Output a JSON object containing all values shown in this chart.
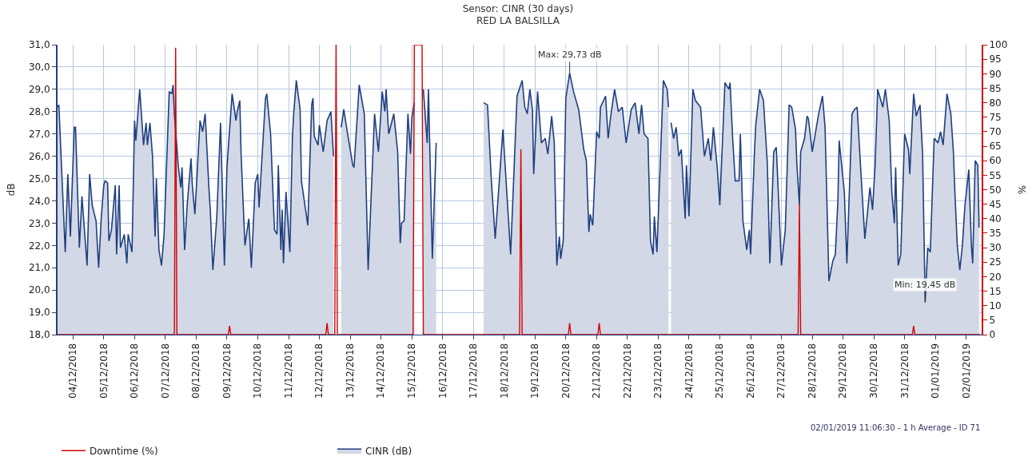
{
  "chart_data": {
    "type": "area",
    "title": "Sensor: CINR (30 days)",
    "subtitle": "RED LA BALSILLA",
    "ylabel": "dB",
    "y2label": "%",
    "xlim": [
      "2018-12-03T12:00",
      "2019-01-02T12:00"
    ],
    "xticks": [
      {
        "value": "2018-12-04",
        "label": "04/12/2018"
      },
      {
        "value": "2018-12-05",
        "label": "05/12/2018"
      },
      {
        "value": "2018-12-06",
        "label": "06/12/2018"
      },
      {
        "value": "2018-12-07",
        "label": "07/12/2018"
      },
      {
        "value": "2018-12-08",
        "label": "08/12/2018"
      },
      {
        "value": "2018-12-09",
        "label": "09/12/2018"
      },
      {
        "value": "2018-12-10",
        "label": "10/12/2018"
      },
      {
        "value": "2018-12-11",
        "label": "11/12/2018"
      },
      {
        "value": "2018-12-12",
        "label": "12/12/2018"
      },
      {
        "value": "2018-12-13",
        "label": "13/12/2018"
      },
      {
        "value": "2018-12-14",
        "label": "14/12/2018"
      },
      {
        "value": "2018-12-15",
        "label": "15/12/2018"
      },
      {
        "value": "2018-12-16",
        "label": "16/12/2018"
      },
      {
        "value": "2018-12-17",
        "label": "17/12/2018"
      },
      {
        "value": "2018-12-18",
        "label": "18/12/2018"
      },
      {
        "value": "2018-12-19",
        "label": "19/12/2018"
      },
      {
        "value": "2018-12-20",
        "label": "20/12/2018"
      },
      {
        "value": "2018-12-21",
        "label": "21/12/2018"
      },
      {
        "value": "2018-12-22",
        "label": "22/12/2018"
      },
      {
        "value": "2018-12-23",
        "label": "23/12/2018"
      },
      {
        "value": "2018-12-24",
        "label": "24/12/2018"
      },
      {
        "value": "2018-12-25",
        "label": "25/12/2018"
      },
      {
        "value": "2018-12-26",
        "label": "26/12/2018"
      },
      {
        "value": "2018-12-27",
        "label": "27/12/2018"
      },
      {
        "value": "2018-12-28",
        "label": "28/12/2018"
      },
      {
        "value": "2018-12-29",
        "label": "29/12/2018"
      },
      {
        "value": "2018-12-30",
        "label": "30/12/2018"
      },
      {
        "value": "2018-12-31",
        "label": "31/12/2018"
      },
      {
        "value": "2019-01-01",
        "label": "01/01/2019"
      },
      {
        "value": "2019-01-02",
        "label": "02/01/2019"
      }
    ],
    "ylim": [
      18,
      31
    ],
    "yticks": [
      {
        "value": 18,
        "label": "18,0"
      },
      {
        "value": 19,
        "label": "19,0"
      },
      {
        "value": 20,
        "label": "20,0"
      },
      {
        "value": 21,
        "label": "21,0"
      },
      {
        "value": 22,
        "label": "22,0"
      },
      {
        "value": 23,
        "label": "23,0"
      },
      {
        "value": 24,
        "label": "24,0"
      },
      {
        "value": 25,
        "label": "25,0"
      },
      {
        "value": 26,
        "label": "26,0"
      },
      {
        "value": 27,
        "label": "27,0"
      },
      {
        "value": 28,
        "label": "28,0"
      },
      {
        "value": 29,
        "label": "29,0"
      },
      {
        "value": 30,
        "label": "30,0"
      },
      {
        "value": 31,
        "label": "31,0"
      }
    ],
    "y2lim": [
      0,
      100
    ],
    "y2ticks": [
      0,
      5,
      10,
      15,
      20,
      25,
      30,
      35,
      40,
      45,
      50,
      55,
      60,
      65,
      70,
      75,
      80,
      85,
      90,
      95,
      100
    ],
    "grid": true,
    "legend": "bottom left",
    "marker": "none",
    "line_style": "solid",
    "annotations": [
      {
        "text": "Max: 29,73 dB",
        "x": "2018-12-20T03:00",
        "y": 29.73
      },
      {
        "text": "Min: 19,45 dB",
        "x": "2018-12-31T16:00",
        "y": 19.45
      },
      "02/01/2019 11:06:30 - 1 h Average - ID 71"
    ],
    "series": [
      {
        "name": "Downtime (%)",
        "type": "line",
        "axis": "y2",
        "color": "#d40000",
        "x": [
          "2018-12-03T12:00",
          "2018-12-07T07:00",
          "2018-12-07T08:00",
          "2018-12-07T09:00",
          "2018-12-09T01:00",
          "2018-12-09T02:00",
          "2018-12-09T03:00",
          "2018-12-12T05:00",
          "2018-12-12T06:00",
          "2018-12-12T07:00",
          "2018-12-12T12:00",
          "2018-12-12T13:00",
          "2018-12-12T14:00",
          "2018-12-15T01:00",
          "2018-12-15T02:00",
          "2018-12-15T08:00",
          "2018-12-15T09:00",
          "2018-12-18T12:00",
          "2018-12-18T13:00",
          "2018-12-18T14:00",
          "2018-12-20T02:00",
          "2018-12-20T03:00",
          "2018-12-20T04:00",
          "2018-12-21T01:00",
          "2018-12-21T02:00",
          "2018-12-21T03:00",
          "2018-12-27T13:00",
          "2018-12-27T14:00",
          "2018-12-27T15:00",
          "2018-12-31T06:00",
          "2018-12-31T07:00",
          "2018-12-31T08:00",
          "2019-01-02T11:00"
        ],
        "values": [
          0,
          0,
          99,
          0,
          0,
          3,
          0,
          0,
          4,
          0,
          0,
          100,
          0,
          0,
          100,
          100,
          0,
          0,
          64,
          0,
          0,
          4,
          0,
          0,
          4,
          0,
          0,
          45,
          0,
          0,
          3,
          0,
          0
        ]
      },
      {
        "name": "CINR (dB)",
        "color": "#1f3f80",
        "x": [
          "2018-12-03T12:00",
          "2018-12-03T13:00",
          "2018-12-03T18:00",
          "2018-12-03T20:00",
          "2018-12-03T22:00",
          "2018-12-04T01:00",
          "2018-12-04T02:00",
          "2018-12-04T05:00",
          "2018-12-04T07:00",
          "2018-12-04T11:00",
          "2018-12-04T13:00",
          "2018-12-04T15:00",
          "2018-12-04T18:00",
          "2018-12-04T20:00",
          "2018-12-04T22:00",
          "2018-12-05T00:00",
          "2018-12-05T01:00",
          "2018-12-05T03:00",
          "2018-12-05T04:00",
          "2018-12-05T06:00",
          "2018-12-05T09:00",
          "2018-12-05T10:00",
          "2018-12-05T12:00",
          "2018-12-05T13:00",
          "2018-12-05T16:00",
          "2018-12-05T18:00",
          "2018-12-05T19:00",
          "2018-12-05T22:00",
          "2018-12-06T00:00",
          "2018-12-06T01:00",
          "2018-12-06T04:00",
          "2018-12-06T07:00",
          "2018-12-06T09:00",
          "2018-12-06T10:00",
          "2018-12-06T12:00",
          "2018-12-06T14:00",
          "2018-12-06T16:00",
          "2018-12-06T17:00",
          "2018-12-06T19:00",
          "2018-12-06T21:00",
          "2018-12-06T23:00",
          "2018-12-07T03:00",
          "2018-12-07T05:00",
          "2018-12-07T06:00",
          "2018-12-07T07:00",
          "2018-12-07T09:00",
          "2018-12-07T10:00",
          "2018-12-07T12:00",
          "2018-12-07T13:00",
          "2018-12-07T15:00",
          "2018-12-07T17:00",
          "2018-12-07T20:00",
          "2018-12-07T21:00",
          "2018-12-07T23:00",
          "2018-12-08T03:00",
          "2018-12-08T05:00",
          "2018-12-08T07:00",
          "2018-12-08T10:00",
          "2018-12-08T11:00",
          "2018-12-08T13:00",
          "2018-12-08T16:00",
          "2018-12-08T19:00",
          "2018-12-08T22:00",
          "2018-12-09T00:00",
          "2018-12-09T04:00",
          "2018-12-09T07:00",
          "2018-12-09T08:00",
          "2018-12-09T10:00",
          "2018-12-09T11:00",
          "2018-12-09T14:00",
          "2018-12-09T17:00",
          "2018-12-09T19:00",
          "2018-12-09T22:00",
          "2018-12-10T00:00",
          "2018-12-10T01:00",
          "2018-12-10T06:00",
          "2018-12-10T07:00",
          "2018-12-10T10:00",
          "2018-12-10T13:00",
          "2018-12-10T15:00",
          "2018-12-10T16:00",
          "2018-12-10T18:00",
          "2018-12-10T19:00",
          "2018-12-10T20:00",
          "2018-12-10T22:00",
          "2018-12-11T01:00",
          "2018-12-11T03:00",
          "2018-12-11T04:00",
          "2018-12-11T06:00",
          "2018-12-11T09:00",
          "2018-12-11T10:00",
          "2018-12-11T15:00",
          "2018-12-11T18:00",
          "2018-12-11T19:00",
          "2018-12-11T20:00",
          "2018-12-11T23:00",
          "2018-12-12T00:00",
          "2018-12-12T03:00",
          "2018-12-12T06:00",
          "2018-12-12T09:00",
          "2018-12-12T11:00",
          "2018-12-12T13:00",
          "2018-12-12T17:00",
          "2018-12-12T19:00",
          "2018-12-12T22:00",
          "2018-12-13T02:00",
          "2018-12-13T03:00",
          "2018-12-13T05:00",
          "2018-12-13T07:00",
          "2018-12-13T11:00",
          "2018-12-13T14:00",
          "2018-12-13T19:00",
          "2018-12-13T22:00",
          "2018-12-14T01:00",
          "2018-12-14T03:00",
          "2018-12-14T04:00",
          "2018-12-14T06:00",
          "2018-12-14T10:00",
          "2018-12-14T13:00",
          "2018-12-14T15:00",
          "2018-12-14T16:00",
          "2018-12-14T18:00",
          "2018-12-14T21:00",
          "2018-12-14T23:00",
          "2018-12-15T00:00",
          "2018-12-15T02:00",
          "2018-12-15T06:00",
          "2018-12-15T09:00",
          "2018-12-15T12:00",
          "2018-12-15T13:00",
          "2018-12-15T16:00",
          "2018-12-15T19:00",
          "2018-12-15T21:00",
          "2018-12-17T08:00",
          "2018-12-17T11:00",
          "2018-12-17T14:00",
          "2018-12-17T17:00",
          "2018-12-17T23:00",
          "2018-12-18T05:00",
          "2018-12-18T10:00",
          "2018-12-18T14:00",
          "2018-12-18T16:00",
          "2018-12-18T18:00",
          "2018-12-18T20:00",
          "2018-12-18T22:00",
          "2018-12-18T23:00",
          "2018-12-19T02:00",
          "2018-12-19T05:00",
          "2018-12-19T08:00",
          "2018-12-19T10:00",
          "2018-12-19T13:00",
          "2018-12-19T15:00",
          "2018-12-19T17:00",
          "2018-12-19T19:00",
          "2018-12-19T20:00",
          "2018-12-19T22:00",
          "2018-12-20T00:00",
          "2018-12-20T03:00",
          "2018-12-20T06:00",
          "2018-12-20T10:00",
          "2018-12-20T14:00",
          "2018-12-20T16:00",
          "2018-12-20T18:00",
          "2018-12-20T19:00",
          "2018-12-20T21:00",
          "2018-12-21T00:00",
          "2018-12-21T02:00",
          "2018-12-21T03:00",
          "2018-12-21T07:00",
          "2018-12-21T09:00",
          "2018-12-21T11:00",
          "2018-12-21T14:00",
          "2018-12-21T17:00",
          "2018-12-21T20:00",
          "2018-12-21T23:00",
          "2018-12-22T03:00",
          "2018-12-22T06:00",
          "2018-12-22T09:00",
          "2018-12-22T11:00",
          "2018-12-22T13:00",
          "2018-12-22T16:00",
          "2018-12-22T18:00",
          "2018-12-22T20:00",
          "2018-12-22T21:00",
          "2018-12-22T23:00",
          "2018-12-23T04:00",
          "2018-12-23T07:00",
          "2018-12-23T08:00",
          "2018-12-23T09:00",
          "2018-12-23T10:00",
          "2018-12-23T12:00",
          "2018-12-23T14:00",
          "2018-12-23T16:00",
          "2018-12-23T18:00",
          "2018-12-23T21:00",
          "2018-12-23T22:00",
          "2018-12-24T00:00",
          "2018-12-24T03:00",
          "2018-12-24T05:00",
          "2018-12-24T09:00",
          "2018-12-24T12:00",
          "2018-12-24T15:00",
          "2018-12-24T17:00",
          "2018-12-24T19:00",
          "2018-12-24T22:00",
          "2018-12-25T00:00",
          "2018-12-25T01:00",
          "2018-12-25T04:00",
          "2018-12-25T07:00",
          "2018-12-25T08:00",
          "2018-12-25T10:00",
          "2018-12-25T12:00",
          "2018-12-25T15:00",
          "2018-12-25T16:00",
          "2018-12-25T18:00",
          "2018-12-25T21:00",
          "2018-12-25T23:00",
          "2018-12-26T00:00",
          "2018-12-26T03:00",
          "2018-12-26T04:00",
          "2018-12-26T07:00",
          "2018-12-26T10:00",
          "2018-12-26T13:00",
          "2018-12-26T15:00",
          "2018-12-26T18:00",
          "2018-12-26T20:00",
          "2018-12-26T21:00",
          "2018-12-27T00:00",
          "2018-12-27T03:00",
          "2018-12-27T06:00",
          "2018-12-27T08:00",
          "2018-12-27T11:00",
          "2018-12-27T12:00",
          "2018-12-27T14:00",
          "2018-12-27T15:00",
          "2018-12-27T18:00",
          "2018-12-27T20:00",
          "2018-12-27T21:00",
          "2018-12-28T00:00",
          "2018-12-28T05:00",
          "2018-12-28T08:00",
          "2018-12-28T10:00",
          "2018-12-28T13:00",
          "2018-12-28T16:00",
          "2018-12-28T18:00",
          "2018-12-28T20:00",
          "2018-12-28T21:00",
          "2018-12-29T01:00",
          "2018-12-29T03:00",
          "2018-12-29T07:00",
          "2018-12-29T09:00",
          "2018-12-29T11:00",
          "2018-12-29T14:00",
          "2018-12-29T17:00",
          "2018-12-29T21:00",
          "2018-12-29T23:00",
          "2018-12-30T01:00",
          "2018-12-30T03:00",
          "2018-12-30T07:00",
          "2018-12-30T09:00",
          "2018-12-30T12:00",
          "2018-12-30T14:00",
          "2018-12-30T16:00",
          "2018-12-30T17:00",
          "2018-12-30T19:00",
          "2018-12-30T21:00",
          "2018-12-31T00:00",
          "2018-12-31T03:00",
          "2018-12-31T04:00",
          "2018-12-31T07:00",
          "2018-12-31T09:00",
          "2018-12-31T12:00",
          "2018-12-31T14:00",
          "2018-12-31T16:00",
          "2018-12-31T18:00",
          "2018-12-31T20:00",
          "2018-12-31T23:00",
          "2019-01-01T02:00",
          "2019-01-01T04:00",
          "2019-01-01T06:00",
          "2019-01-01T09:00",
          "2019-01-01T12:00",
          "2019-01-01T14:00",
          "2019-01-01T15:00",
          "2019-01-01T17:00",
          "2019-01-01T19:00",
          "2019-01-01T21:00",
          "2019-01-01T23:00",
          "2019-01-02T02:00",
          "2019-01-02T04:00",
          "2019-01-02T05:00",
          "2019-01-02T07:00",
          "2019-01-02T09:00",
          "2019-01-02T10:00"
        ],
        "values": [
          28.2,
          28.3,
          21.7,
          25.2,
          22.4,
          27.3,
          27.3,
          21.9,
          24.2,
          21.1,
          25.2,
          23.8,
          23.1,
          21.0,
          23.2,
          24.7,
          24.9,
          24.8,
          22.2,
          22.7,
          24.7,
          21.6,
          24.7,
          21.9,
          22.5,
          21.2,
          22.5,
          21.7,
          27.6,
          26.7,
          29.0,
          26.5,
          27.5,
          26.5,
          27.5,
          26.0,
          22.4,
          25.0,
          21.8,
          21.1,
          22.5,
          28.9,
          28.8,
          29.2,
          27.9,
          26.4,
          25.6,
          24.6,
          25.5,
          21.8,
          23.8,
          25.9,
          24.7,
          23.4,
          27.6,
          27.1,
          27.9,
          24.5,
          23.6,
          20.9,
          23.2,
          27.5,
          21.1,
          25.5,
          28.8,
          27.6,
          28.0,
          28.5,
          26.1,
          22.0,
          23.2,
          21.0,
          24.8,
          25.2,
          23.7,
          28.6,
          28.8,
          27.0,
          22.7,
          22.5,
          25.6,
          21.8,
          23.6,
          21.2,
          24.4,
          21.7,
          26.9,
          27.9,
          29.4,
          28.1,
          24.9,
          22.9,
          28.3,
          28.6,
          26.9,
          26.5,
          27.4,
          26.2,
          27.6,
          28.0,
          26.0,
          null,
          27.3,
          28.1,
          27.0,
          25.6,
          25.5,
          27.3,
          29.2,
          27.9,
          20.9,
          27.9,
          26.2,
          28.9,
          28.0,
          29.0,
          27.0,
          27.9,
          26.2,
          22.1,
          23.0,
          23.1,
          27.9,
          26.1,
          27.7,
          28.4,
          null,
          29.0,
          26.6,
          29.0,
          21.4,
          26.6,
          null,
          28.4,
          28.3,
          24.9,
          22.3,
          27.2,
          21.6,
          28.7,
          29.4,
          28.2,
          27.9,
          29.0,
          28.1,
          25.2,
          28.9,
          26.6,
          26.8,
          26.1,
          27.8,
          26.6,
          21.1,
          22.4,
          21.4,
          22.2,
          28.6,
          29.73,
          28.9,
          28.1,
          26.3,
          25.8,
          22.6,
          23.4,
          22.9,
          27.1,
          26.8,
          28.2,
          28.7,
          26.8,
          27.8,
          29.0,
          28.0,
          28.2,
          26.6,
          28.1,
          28.4,
          27.0,
          28.3,
          27.0,
          26.8,
          22.2,
          21.6,
          23.3,
          21.7,
          29.4,
          29.0,
          28.2,
          null,
          27.5,
          26.8,
          27.3,
          26.0,
          26.3,
          23.2,
          25.6,
          23.3,
          29.0,
          28.5,
          28.2,
          26.0,
          26.8,
          25.8,
          27.3,
          25.5,
          23.8,
          25.2,
          29.3,
          29.0,
          29.3,
          26.8,
          24.9,
          24.9,
          27.0,
          23.1,
          21.8,
          22.7,
          21.6,
          26.2,
          27.4,
          29.0,
          28.5,
          25.7,
          21.2,
          26.2,
          26.4,
          25.1,
          21.1,
          22.7,
          28.3,
          28.2,
          27.2,
          25.7,
          23.8,
          26.2,
          26.8,
          27.8,
          27.7,
          26.2,
          27.9,
          28.7,
          27.3,
          20.4,
          21.3,
          21.6,
          24.0,
          26.7,
          24.4,
          21.2,
          27.9,
          28.1,
          28.2,
          25.2,
          22.3,
          24.6,
          23.6,
          25.6,
          29.0,
          28.2,
          29.0,
          27.6,
          24.4,
          23.0,
          25.5,
          21.1,
          21.6,
          27.0,
          26.3,
          25.2,
          28.8,
          27.8,
          28.3,
          26.1,
          19.45,
          21.9,
          21.7,
          26.8,
          26.6,
          27.1,
          26.5,
          28.8,
          27.9,
          26.2,
          24.6,
          22.0,
          20.9,
          22.0,
          23.8,
          25.4,
          22.0,
          21.2,
          25.8,
          25.6,
          22.8
        ]
      }
    ]
  }
}
